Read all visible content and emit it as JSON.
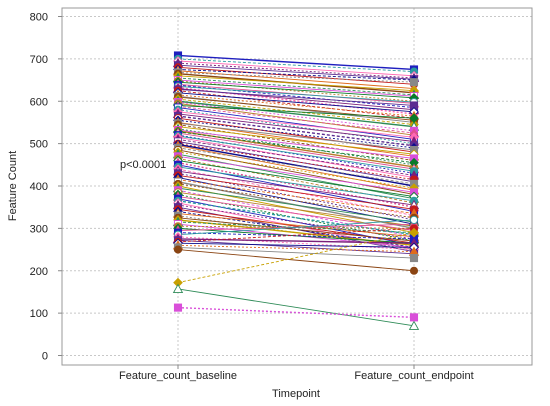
{
  "chart_data": {
    "type": "line",
    "ylabel": "Feature Count",
    "xlabel": "Timepoint",
    "categories": [
      "Feature_count_baseline",
      "Feature_count_endpoint"
    ],
    "ylim": [
      0,
      800
    ],
    "yticks": [
      0,
      100,
      200,
      300,
      400,
      500,
      600,
      700,
      800
    ],
    "grid": "horizontal and vertical dashed",
    "annotations": [
      {
        "text": "p<0.0001",
        "x": "Feature_count_baseline",
        "y": 445
      }
    ],
    "pairs": [
      [
        708,
        675
      ],
      [
        700,
        670
      ],
      [
        695,
        660
      ],
      [
        690,
        655
      ],
      [
        685,
        652
      ],
      [
        680,
        640
      ],
      [
        675,
        650
      ],
      [
        672,
        630
      ],
      [
        668,
        645
      ],
      [
        665,
        620
      ],
      [
        660,
        625
      ],
      [
        655,
        615
      ],
      [
        650,
        612
      ],
      [
        648,
        600
      ],
      [
        645,
        608
      ],
      [
        640,
        595
      ],
      [
        638,
        585
      ],
      [
        635,
        598
      ],
      [
        632,
        570
      ],
      [
        630,
        580
      ],
      [
        628,
        590
      ],
      [
        625,
        560
      ],
      [
        620,
        575
      ],
      [
        615,
        565
      ],
      [
        612,
        550
      ],
      [
        610,
        555
      ],
      [
        605,
        545
      ],
      [
        600,
        540
      ],
      [
        598,
        530
      ],
      [
        595,
        520
      ],
      [
        590,
        560
      ],
      [
        588,
        525
      ],
      [
        585,
        510
      ],
      [
        580,
        500
      ],
      [
        575,
        515
      ],
      [
        570,
        505
      ],
      [
        565,
        495
      ],
      [
        560,
        480
      ],
      [
        555,
        490
      ],
      [
        550,
        470
      ],
      [
        548,
        485
      ],
      [
        545,
        460
      ],
      [
        540,
        475
      ],
      [
        535,
        450
      ],
      [
        532,
        465
      ],
      [
        530,
        445
      ],
      [
        528,
        455
      ],
      [
        525,
        440
      ],
      [
        520,
        430
      ],
      [
        518,
        435
      ],
      [
        515,
        420
      ],
      [
        510,
        425
      ],
      [
        505,
        410
      ],
      [
        500,
        415
      ],
      [
        498,
        400
      ],
      [
        495,
        390
      ],
      [
        490,
        405
      ],
      [
        485,
        380
      ],
      [
        480,
        395
      ],
      [
        475,
        370
      ],
      [
        470,
        385
      ],
      [
        465,
        360
      ],
      [
        460,
        375
      ],
      [
        455,
        350
      ],
      [
        450,
        340
      ],
      [
        445,
        365
      ],
      [
        440,
        330
      ],
      [
        435,
        355
      ],
      [
        430,
        320
      ],
      [
        425,
        345
      ],
      [
        420,
        310
      ],
      [
        415,
        335
      ],
      [
        410,
        300
      ],
      [
        405,
        325
      ],
      [
        400,
        290
      ],
      [
        395,
        315
      ],
      [
        390,
        280
      ],
      [
        385,
        305
      ],
      [
        380,
        270
      ],
      [
        375,
        295
      ],
      [
        370,
        260
      ],
      [
        365,
        285
      ],
      [
        360,
        250
      ],
      [
        355,
        275
      ],
      [
        350,
        245
      ],
      [
        345,
        265
      ],
      [
        340,
        255
      ],
      [
        335,
        280
      ],
      [
        330,
        250
      ],
      [
        325,
        270
      ],
      [
        320,
        260
      ],
      [
        315,
        290
      ],
      [
        310,
        255
      ],
      [
        305,
        300
      ],
      [
        300,
        265
      ],
      [
        295,
        310
      ],
      [
        290,
        275
      ],
      [
        285,
        320
      ],
      [
        280,
        250
      ],
      [
        275,
        265
      ],
      [
        272,
        240
      ],
      [
        268,
        300
      ],
      [
        265,
        255
      ],
      [
        260,
        245
      ],
      [
        255,
        230
      ],
      [
        250,
        200
      ],
      [
        172,
        290
      ],
      [
        157,
        70
      ],
      [
        113,
        90
      ]
    ],
    "palette": [
      "#1f1fbf",
      "#e06b1b",
      "#0a7a2a",
      "#c41a1a",
      "#d94fd9",
      "#7a1f7a",
      "#c8a000",
      "#2b9aa0",
      "#888888",
      "#e05090",
      "#0d0d8c",
      "#b87d2b",
      "#5c2d91",
      "#2e8b57",
      "#ff69b4",
      "#8b4513"
    ]
  }
}
